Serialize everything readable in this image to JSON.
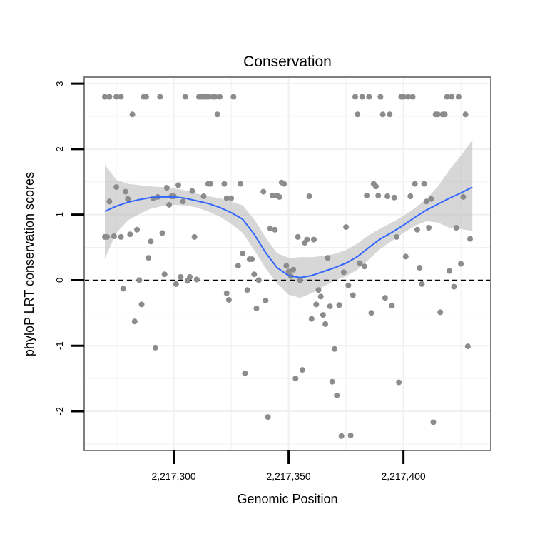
{
  "chart_data": {
    "type": "scatter",
    "title": "Conservation",
    "xlabel": "Genomic Position",
    "ylabel": "phyloP LRT conservation scores",
    "xlim": [
      2217261,
      2217438
    ],
    "ylim": [
      -2.6,
      3.1
    ],
    "x_ticks": [
      {
        "value": 2217300,
        "label": "2,217,300"
      },
      {
        "value": 2217350,
        "label": "2,217,350"
      },
      {
        "value": 2217400,
        "label": "2,217,400"
      }
    ],
    "y_ticks": [
      {
        "value": -2,
        "label": "-2"
      },
      {
        "value": -1,
        "label": "-1"
      },
      {
        "value": 0,
        "label": "0"
      },
      {
        "value": 1,
        "label": "1"
      },
      {
        "value": 2,
        "label": "2"
      },
      {
        "value": 3,
        "label": "3"
      }
    ],
    "reference_line": {
      "y": 0,
      "style": "dashed"
    },
    "grid": true,
    "colors": {
      "points": "#8c8c8c",
      "smooth_line": "#3366ff",
      "confidence_band": "#bdbdbd",
      "grid": "#f0f0f0",
      "panel_border": "#7f7f7f"
    },
    "points": [
      [
        2217270,
        0.66
      ],
      [
        2217271,
        0.66
      ],
      [
        2217270,
        2.8
      ],
      [
        2217272,
        2.8
      ],
      [
        2217272,
        1.2
      ],
      [
        2217274,
        0.67
      ],
      [
        2217275,
        2.8
      ],
      [
        2217275,
        1.42
      ],
      [
        2217277,
        2.8
      ],
      [
        2217277,
        0.66
      ],
      [
        2217278,
        -0.13
      ],
      [
        2217279,
        1.35
      ],
      [
        2217280,
        1.24
      ],
      [
        2217281,
        0.7
      ],
      [
        2217282,
        2.53
      ],
      [
        2217283,
        -0.63
      ],
      [
        2217284,
        0.77
      ],
      [
        2217285,
        0.0
      ],
      [
        2217286,
        -0.37
      ],
      [
        2217287,
        2.8
      ],
      [
        2217288,
        2.8
      ],
      [
        2217289,
        0.34
      ],
      [
        2217290,
        0.59
      ],
      [
        2217291,
        1.25
      ],
      [
        2217292,
        -1.03
      ],
      [
        2217293,
        1.27
      ],
      [
        2217294,
        2.8
      ],
      [
        2217295,
        0.72
      ],
      [
        2217296,
        0.09
      ],
      [
        2217297,
        1.41
      ],
      [
        2217298,
        1.15
      ],
      [
        2217299,
        1.28
      ],
      [
        2217300,
        1.28
      ],
      [
        2217301,
        -0.06
      ],
      [
        2217302,
        1.45
      ],
      [
        2217303,
        0.05
      ],
      [
        2217304,
        1.2
      ],
      [
        2217305,
        2.8
      ],
      [
        2217306,
        -0.01
      ],
      [
        2217307,
        0.05
      ],
      [
        2217308,
        1.36
      ],
      [
        2217309,
        0.66
      ],
      [
        2217310,
        0.01
      ],
      [
        2217311,
        2.8
      ],
      [
        2217312,
        2.8
      ],
      [
        2217313,
        2.8
      ],
      [
        2217313,
        1.28
      ],
      [
        2217314,
        2.8
      ],
      [
        2217315,
        2.8
      ],
      [
        2217315,
        1.47
      ],
      [
        2217316,
        1.47
      ],
      [
        2217317,
        2.8
      ],
      [
        2217318,
        2.8
      ],
      [
        2217319,
        2.53
      ],
      [
        2217320,
        2.8
      ],
      [
        2217322,
        1.47
      ],
      [
        2217323,
        1.25
      ],
      [
        2217323,
        -0.2
      ],
      [
        2217324,
        -0.3
      ],
      [
        2217325,
        1.25
      ],
      [
        2217326,
        2.8
      ],
      [
        2217328,
        0.22
      ],
      [
        2217329,
        1.47
      ],
      [
        2217330,
        0.41
      ],
      [
        2217331,
        -1.42
      ],
      [
        2217332,
        -0.15
      ],
      [
        2217333,
        0.32
      ],
      [
        2217334,
        0.32
      ],
      [
        2217335,
        0.09
      ],
      [
        2217336,
        -0.43
      ],
      [
        2217337,
        0.0
      ],
      [
        2217339,
        1.35
      ],
      [
        2217340,
        -0.31
      ],
      [
        2217341,
        -2.09
      ],
      [
        2217342,
        0.79
      ],
      [
        2217343,
        1.29
      ],
      [
        2217344,
        0.77
      ],
      [
        2217345,
        1.29
      ],
      [
        2217346,
        1.27
      ],
      [
        2217347,
        1.49
      ],
      [
        2217348,
        1.47
      ],
      [
        2217349,
        0.22
      ],
      [
        2217350,
        0.13
      ],
      [
        2217351,
        0.06
      ],
      [
        2217352,
        0.16
      ],
      [
        2217353,
        -1.5
      ],
      [
        2217354,
        0.66
      ],
      [
        2217355,
        0.0
      ],
      [
        2217356,
        -1.37
      ],
      [
        2217357,
        0.57
      ],
      [
        2217358,
        0.62
      ],
      [
        2217359,
        1.28
      ],
      [
        2217360,
        -0.59
      ],
      [
        2217361,
        0.62
      ],
      [
        2217362,
        -0.37
      ],
      [
        2217363,
        -0.15
      ],
      [
        2217364,
        -0.25
      ],
      [
        2217365,
        -0.53
      ],
      [
        2217366,
        -0.67
      ],
      [
        2217367,
        0.34
      ],
      [
        2217368,
        -0.4
      ],
      [
        2217369,
        -1.55
      ],
      [
        2217370,
        -1.05
      ],
      [
        2217371,
        -1.76
      ],
      [
        2217372,
        -0.38
      ],
      [
        2217373,
        -2.38
      ],
      [
        2217374,
        0.12
      ],
      [
        2217375,
        0.81
      ],
      [
        2217376,
        -0.08
      ],
      [
        2217377,
        -2.37
      ],
      [
        2217378,
        -0.23
      ],
      [
        2217379,
        2.8
      ],
      [
        2217380,
        2.53
      ],
      [
        2217381,
        0.26
      ],
      [
        2217382,
        2.8
      ],
      [
        2217383,
        0.21
      ],
      [
        2217384,
        1.29
      ],
      [
        2217385,
        2.8
      ],
      [
        2217386,
        -0.5
      ],
      [
        2217387,
        1.47
      ],
      [
        2217388,
        1.43
      ],
      [
        2217389,
        1.29
      ],
      [
        2217390,
        2.8
      ],
      [
        2217391,
        2.53
      ],
      [
        2217392,
        -0.27
      ],
      [
        2217393,
        1.28
      ],
      [
        2217394,
        2.53
      ],
      [
        2217395,
        -0.39
      ],
      [
        2217396,
        1.26
      ],
      [
        2217397,
        0.66
      ],
      [
        2217398,
        -1.56
      ],
      [
        2217399,
        2.8
      ],
      [
        2217400,
        2.8
      ],
      [
        2217401,
        0.36
      ],
      [
        2217402,
        2.8
      ],
      [
        2217403,
        1.28
      ],
      [
        2217404,
        2.8
      ],
      [
        2217405,
        1.47
      ],
      [
        2217406,
        0.77
      ],
      [
        2217407,
        0.19
      ],
      [
        2217408,
        -0.06
      ],
      [
        2217409,
        1.47
      ],
      [
        2217410,
        1.2
      ],
      [
        2217411,
        0.8
      ],
      [
        2217412,
        1.24
      ],
      [
        2217413,
        -2.17
      ],
      [
        2217414,
        2.53
      ],
      [
        2217415,
        2.53
      ],
      [
        2217416,
        -0.49
      ],
      [
        2217417,
        2.53
      ],
      [
        2217418,
        2.53
      ],
      [
        2217419,
        2.8
      ],
      [
        2217420,
        0.14
      ],
      [
        2217421,
        2.8
      ],
      [
        2217422,
        -0.1
      ],
      [
        2217423,
        0.8
      ],
      [
        2217424,
        2.8
      ],
      [
        2217425,
        0.25
      ],
      [
        2217426,
        1.27
      ],
      [
        2217427,
        2.53
      ],
      [
        2217428,
        -1.01
      ],
      [
        2217429,
        0.63
      ]
    ],
    "smooth": {
      "x": [
        2217270,
        2217275,
        2217280,
        2217285,
        2217290,
        2217295,
        2217300,
        2217305,
        2217310,
        2217315,
        2217320,
        2217325,
        2217330,
        2217335,
        2217340,
        2217345,
        2217350,
        2217355,
        2217360,
        2217365,
        2217370,
        2217375,
        2217380,
        2217385,
        2217390,
        2217395,
        2217400,
        2217405,
        2217410,
        2217415,
        2217420,
        2217425,
        2217430
      ],
      "y": [
        1.05,
        1.13,
        1.19,
        1.23,
        1.26,
        1.27,
        1.27,
        1.25,
        1.21,
        1.17,
        1.11,
        1.03,
        0.93,
        0.7,
        0.42,
        0.19,
        0.07,
        0.04,
        0.07,
        0.13,
        0.19,
        0.26,
        0.36,
        0.5,
        0.63,
        0.73,
        0.84,
        0.96,
        1.07,
        1.16,
        1.25,
        1.33,
        1.42
      ],
      "lower": [
        0.33,
        0.72,
        0.91,
        1.01,
        1.09,
        1.13,
        1.15,
        1.14,
        1.11,
        1.05,
        0.97,
        0.86,
        0.72,
        0.46,
        0.18,
        -0.05,
        -0.22,
        -0.27,
        -0.2,
        -0.1,
        -0.01,
        0.06,
        0.16,
        0.32,
        0.48,
        0.6,
        0.72,
        0.83,
        0.9,
        0.88,
        0.8,
        0.78,
        0.75
      ],
      "upper": [
        1.76,
        1.53,
        1.47,
        1.45,
        1.43,
        1.42,
        1.4,
        1.37,
        1.32,
        1.28,
        1.25,
        1.2,
        1.14,
        0.93,
        0.65,
        0.41,
        0.34,
        0.35,
        0.35,
        0.37,
        0.4,
        0.46,
        0.56,
        0.69,
        0.79,
        0.88,
        0.98,
        1.1,
        1.24,
        1.43,
        1.68,
        1.9,
        2.14
      ]
    }
  }
}
